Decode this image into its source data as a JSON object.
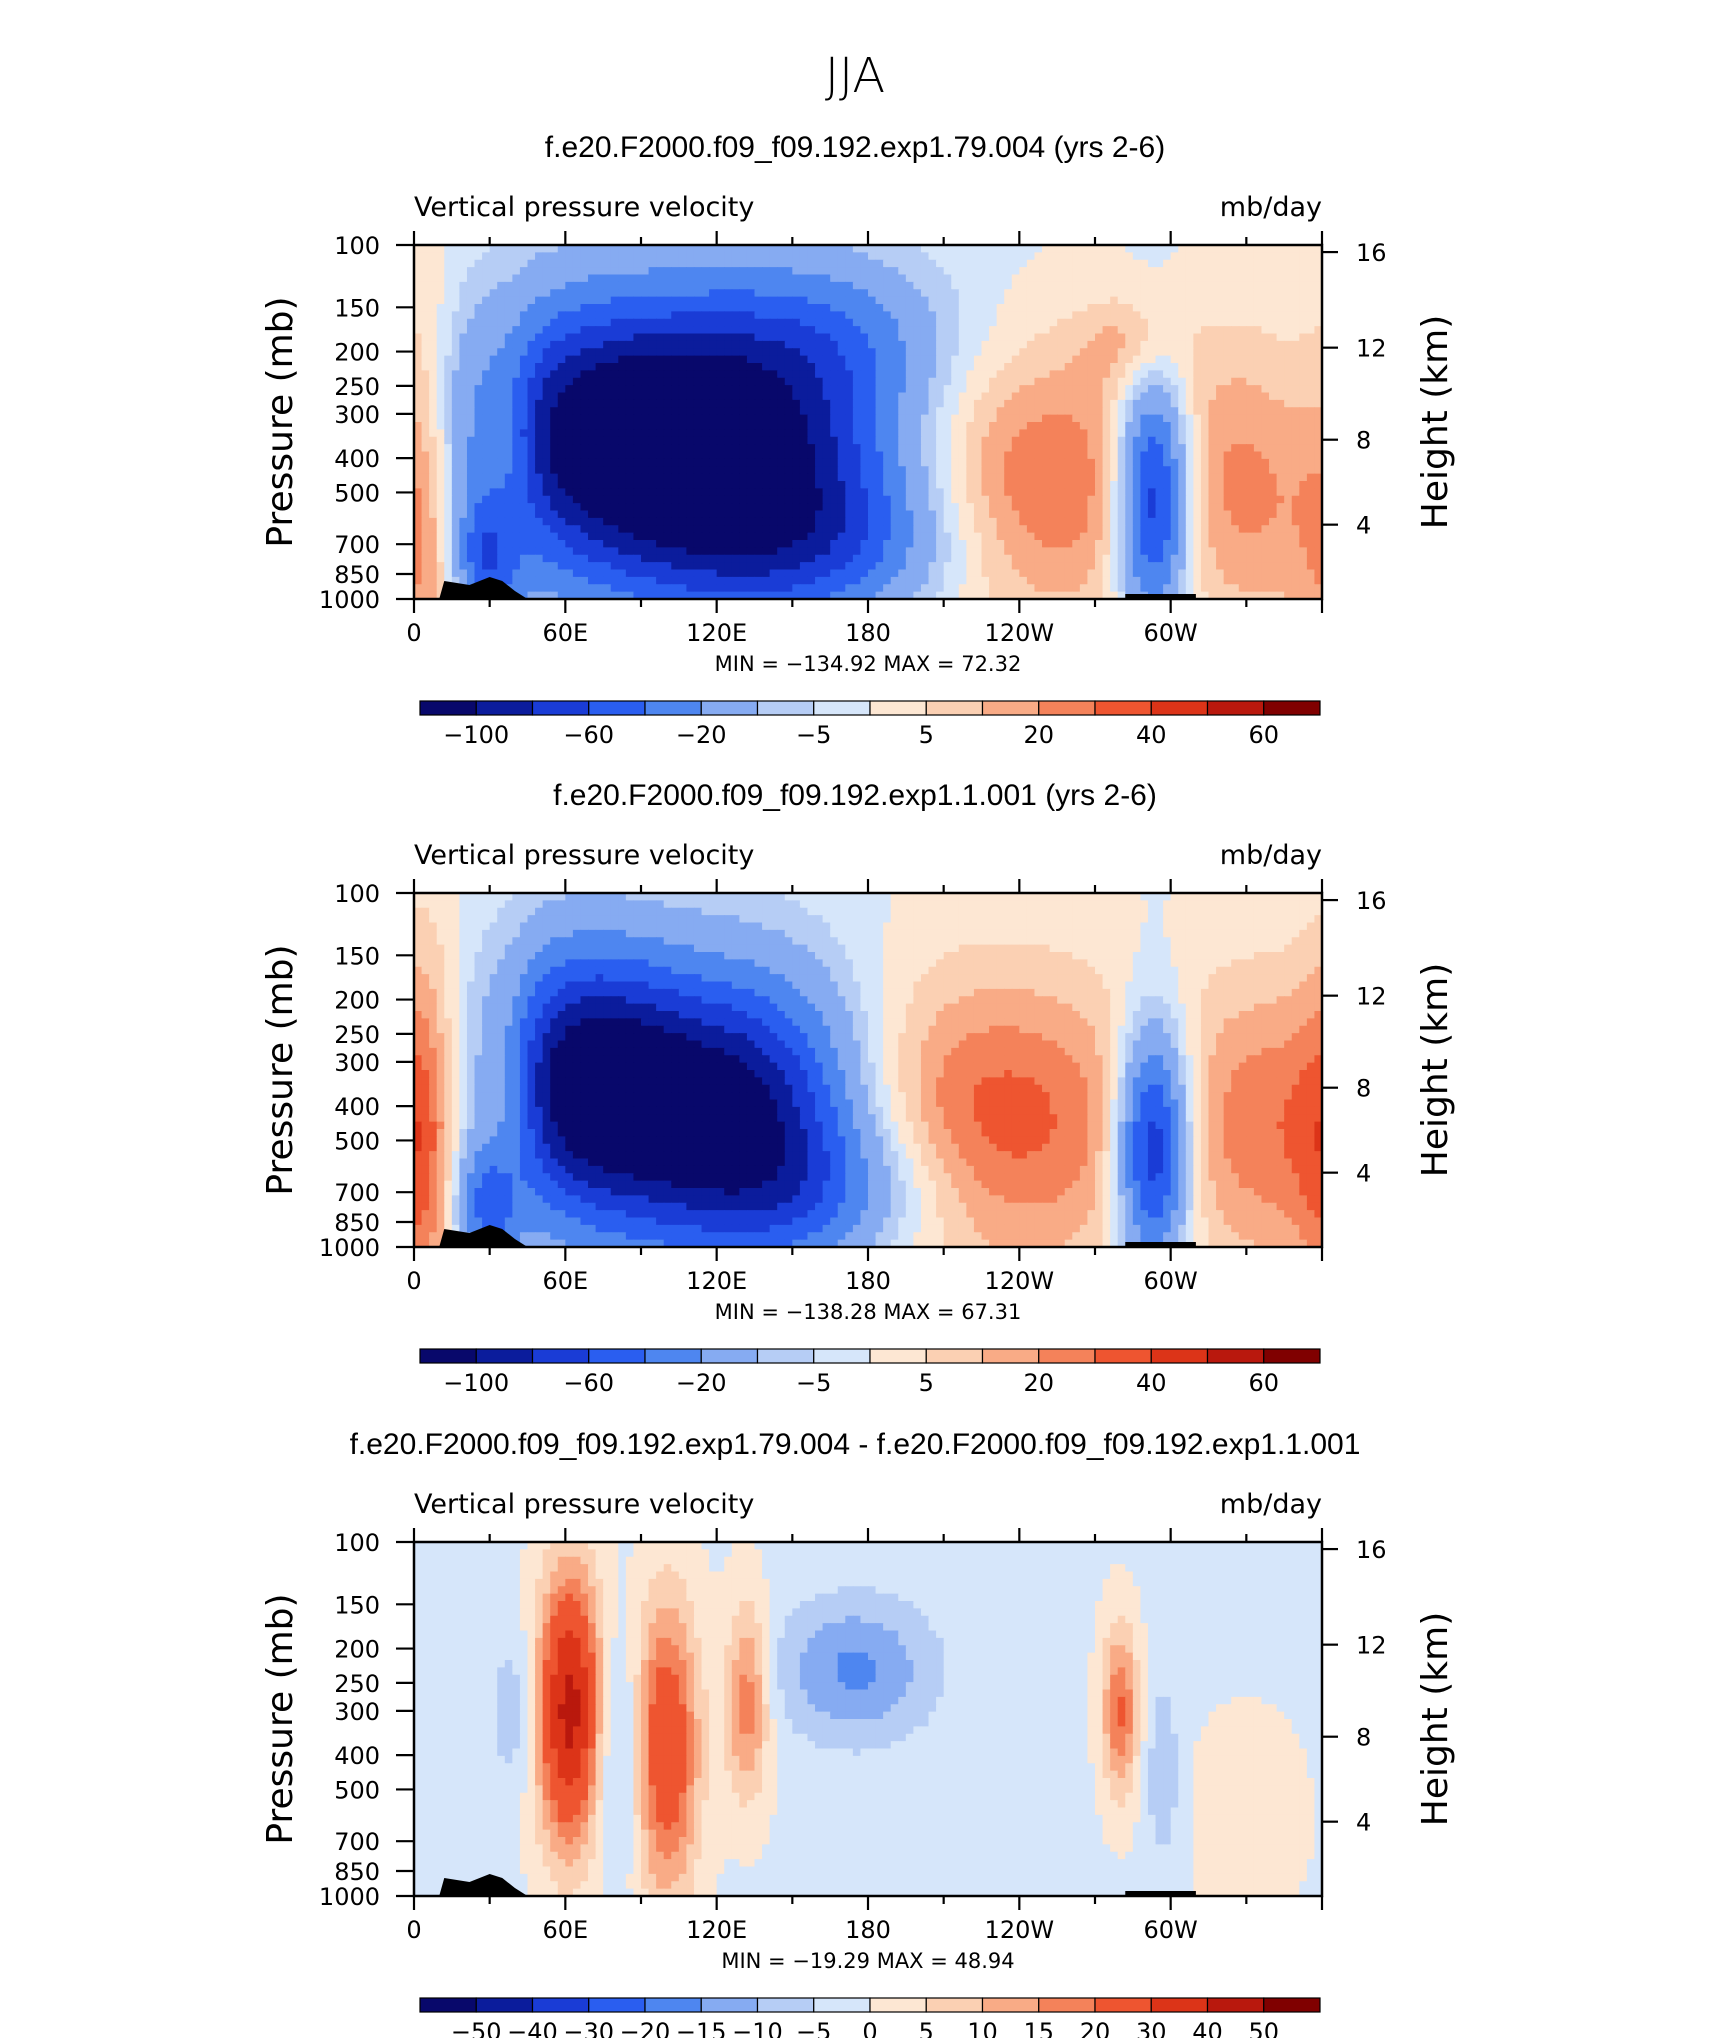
{
  "figure": {
    "title": "JJA"
  },
  "colors": {
    "diverging_scale": [
      "#08086b",
      "#0b1c9c",
      "#1a3cd6",
      "#2a5ef0",
      "#4e86f0",
      "#86abf2",
      "#b6cdf5",
      "#d6e6fa",
      "#fde7d3",
      "#fbd0b3",
      "#f9ab86",
      "#f4825a",
      "#ee5530",
      "#dc3418",
      "#b9180d",
      "#800000"
    ],
    "topography": "#000000"
  },
  "chart_data": [
    {
      "type": "contour",
      "title": "f.e20.F2000.f09_f09.192.exp1.79.004 (yrs 2-6)",
      "left_label": "Vertical pressure velocity",
      "right_label": "mb/day",
      "ylabel": "Pressure (mb)",
      "ylabel_right": "Height (km)",
      "x_ticks": [
        "0",
        "60E",
        "120E",
        "180",
        "120W",
        "60W"
      ],
      "x_range": [
        0,
        360
      ],
      "y_ticks": [
        "100",
        "150",
        "200",
        "250",
        "300",
        "400",
        "500",
        "700",
        "850",
        "1000"
      ],
      "y_ticks_right": [
        "16",
        "12",
        "8",
        "4"
      ],
      "min_max_label": "MIN = −134.92   MAX =   72.32",
      "min": -134.92,
      "max": 72.32,
      "colorbar_labels": [
        "−100",
        "−60",
        "−20",
        "−5",
        "5",
        "20",
        "40",
        "60"
      ],
      "features": [
        {
          "lon": 70,
          "p": 330,
          "v": -95,
          "w": 42,
          "h": 0.55
        },
        {
          "lon": 110,
          "p": 420,
          "v": -80,
          "w": 45,
          "h": 0.6
        },
        {
          "lon": 150,
          "p": 380,
          "v": -60,
          "w": 40,
          "h": 0.65
        },
        {
          "lon": 165,
          "p": 700,
          "v": -35,
          "w": 40,
          "h": 0.3
        },
        {
          "lon": 165,
          "p": 180,
          "v": -25,
          "w": 35,
          "h": 0.3
        },
        {
          "lon": 30,
          "p": 780,
          "v": -70,
          "w": 10,
          "h": 0.3
        },
        {
          "lon": 37,
          "p": 420,
          "v": 35,
          "w": 9,
          "h": 0.55
        },
        {
          "lon": 5,
          "p": 500,
          "v": 30,
          "w": 10,
          "h": 0.9
        },
        {
          "lon": 245,
          "p": 480,
          "v": 45,
          "w": 40,
          "h": 0.6
        },
        {
          "lon": 293,
          "p": 520,
          "v": -110,
          "w": 10,
          "h": 0.5
        },
        {
          "lon": 340,
          "p": 450,
          "v": 38,
          "w": 28,
          "h": 0.65
        },
        {
          "lon": 285,
          "p": 190,
          "v": 20,
          "w": 14,
          "h": 0.2
        }
      ]
    },
    {
      "type": "contour",
      "title": "f.e20.F2000.f09_f09.192.exp1.1.001 (yrs 2-6)",
      "left_label": "Vertical pressure velocity",
      "right_label": "mb/day",
      "ylabel": "Pressure (mb)",
      "ylabel_right": "Height (km)",
      "x_ticks": [
        "0",
        "60E",
        "120E",
        "180",
        "120W",
        "60W"
      ],
      "x_range": [
        0,
        360
      ],
      "y_ticks": [
        "100",
        "150",
        "200",
        "250",
        "300",
        "400",
        "500",
        "700",
        "850",
        "1000"
      ],
      "y_ticks_right": [
        "16",
        "12",
        "8",
        "4"
      ],
      "min_max_label": "MIN = −138.28   MAX =   67.31",
      "min": -138.28,
      "max": 67.31,
      "colorbar_labels": [
        "−100",
        "−60",
        "−20",
        "−5",
        "5",
        "20",
        "40",
        "60"
      ],
      "features": [
        {
          "lon": 65,
          "p": 330,
          "v": -100,
          "w": 28,
          "h": 0.55
        },
        {
          "lon": 105,
          "p": 420,
          "v": -90,
          "w": 38,
          "h": 0.55
        },
        {
          "lon": 140,
          "p": 430,
          "v": -65,
          "w": 30,
          "h": 0.6
        },
        {
          "lon": 165,
          "p": 700,
          "v": -35,
          "w": 35,
          "h": 0.3
        },
        {
          "lon": 30,
          "p": 780,
          "v": -70,
          "w": 10,
          "h": 0.3
        },
        {
          "lon": 37,
          "p": 420,
          "v": 35,
          "w": 9,
          "h": 0.55
        },
        {
          "lon": 5,
          "p": 500,
          "v": 30,
          "w": 10,
          "h": 0.9
        },
        {
          "lon": 230,
          "p": 450,
          "v": 48,
          "w": 48,
          "h": 0.65
        },
        {
          "lon": 293,
          "p": 520,
          "v": -110,
          "w": 10,
          "h": 0.5
        },
        {
          "lon": 345,
          "p": 450,
          "v": 38,
          "w": 28,
          "h": 0.65
        }
      ]
    },
    {
      "type": "contour",
      "title": "f.e20.F2000.f09_f09.192.exp1.79.004 - f.e20.F2000.f09_f09.192.exp1.1.001",
      "left_label": "Vertical pressure velocity",
      "right_label": "mb/day",
      "ylabel": "Pressure (mb)",
      "ylabel_right": "Height (km)",
      "x_ticks": [
        "0",
        "60E",
        "120E",
        "180",
        "120W",
        "60W"
      ],
      "x_range": [
        0,
        360
      ],
      "y_ticks": [
        "100",
        "150",
        "200",
        "250",
        "300",
        "400",
        "500",
        "700",
        "850",
        "1000"
      ],
      "y_ticks_right": [
        "16",
        "12",
        "8",
        "4"
      ],
      "min_max_label": "MIN = −19.29   MAX =   48.94",
      "min": -19.29,
      "max": 48.94,
      "colorbar_labels": [
        "−50",
        "−40",
        "−30",
        "−20",
        "−15",
        "−10",
        "−5",
        "0",
        "5",
        "10",
        "15",
        "20",
        "30",
        "40",
        "50"
      ],
      "features": [
        {
          "lon": 62,
          "p": 300,
          "v": 45,
          "w": 9,
          "h": 0.55
        },
        {
          "lon": 100,
          "p": 380,
          "v": 30,
          "w": 9,
          "h": 0.6
        },
        {
          "lon": 132,
          "p": 280,
          "v": 20,
          "w": 6,
          "h": 0.4
        },
        {
          "lon": 80,
          "p": 380,
          "v": -12,
          "w": 8,
          "h": 0.5
        },
        {
          "lon": 175,
          "p": 230,
          "v": -15,
          "w": 22,
          "h": 0.3
        },
        {
          "lon": 40,
          "p": 300,
          "v": -8,
          "w": 7,
          "h": 0.35
        },
        {
          "lon": 280,
          "p": 300,
          "v": 22,
          "w": 5,
          "h": 0.35
        },
        {
          "lon": 297,
          "p": 450,
          "v": -8,
          "w": 5,
          "h": 0.4
        },
        {
          "lon": 330,
          "p": 600,
          "v": 5,
          "w": 15,
          "h": 0.4
        }
      ]
    }
  ]
}
